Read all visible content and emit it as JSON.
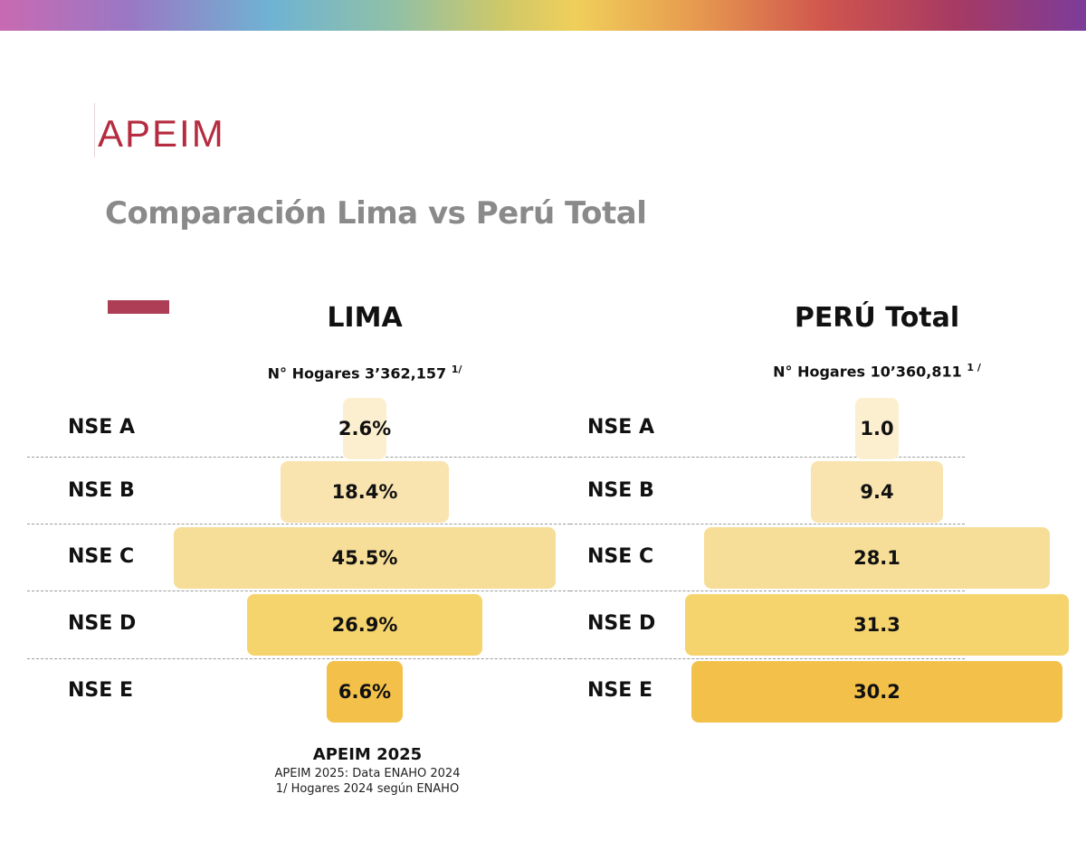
{
  "logo_text": "APEIM",
  "title": "Comparación Lima vs Perú Total",
  "colors": {
    "top_bar_gradient": [
      "#c86ab2",
      "#6fb3d3",
      "#f0cf5a",
      "#d0554e",
      "#7c3c9a"
    ],
    "logo": "#b52b3f",
    "title": "#8a8a8a",
    "accent": "#ad3e55",
    "bar_shades": [
      "#fbefcf",
      "#f9e4b0",
      "#f6de98",
      "#f5d46e",
      "#f3c04a"
    ]
  },
  "chart_data": [
    {
      "type": "bar",
      "orientation": "horizontal-centered",
      "title": "LIMA",
      "subtitle_label": "N° Hogares",
      "subtitle_value": "3’362,157",
      "subtitle_note": "1/",
      "categories": [
        "NSE A",
        "NSE B",
        "NSE C",
        "NSE D",
        "NSE E"
      ],
      "values": [
        2.6,
        18.4,
        45.5,
        26.9,
        6.6
      ],
      "value_labels": [
        "2.6%",
        "18.4%",
        "45.5%",
        "26.9%",
        "6.6%"
      ],
      "unit": "%"
    },
    {
      "type": "bar",
      "orientation": "horizontal-centered",
      "title": "PERÚ Total",
      "subtitle_label": "N° Hogares",
      "subtitle_value": "10’360,811",
      "subtitle_note": "1 /",
      "categories": [
        "NSE A",
        "NSE B",
        "NSE C",
        "NSE D",
        "NSE E"
      ],
      "values": [
        1.0,
        9.4,
        28.1,
        31.3,
        30.2
      ],
      "value_labels": [
        "1.0",
        "9.4",
        "28.1",
        "31.3",
        "30.2"
      ],
      "unit": "%"
    }
  ],
  "footer": {
    "title": "APEIM 2025",
    "source": "APEIM 2025: Data ENAHO 2024",
    "note": "1/ Hogares 2024 según ENAHO"
  }
}
